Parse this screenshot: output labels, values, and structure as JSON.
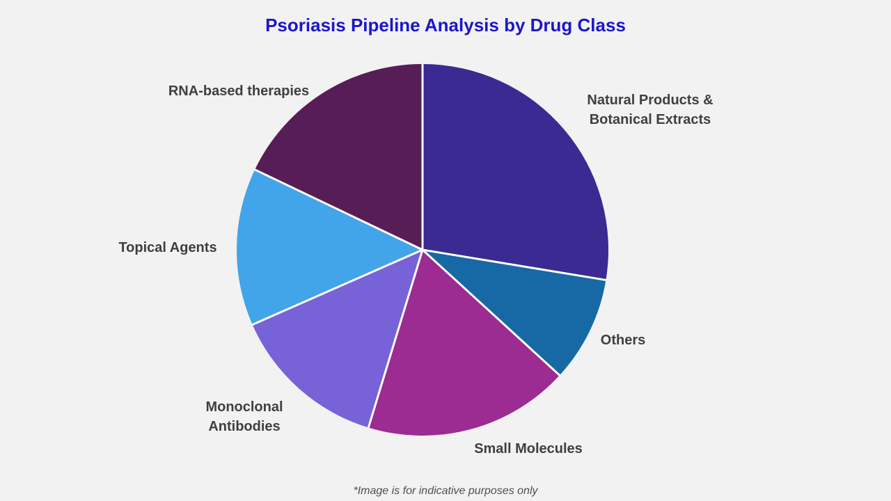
{
  "title": "Psoriasis Pipeline Analysis by Drug Class",
  "footer_note": "*Image is for indicative purposes only",
  "colors": {
    "background": "#f2f2f2",
    "title": "#1c15cb",
    "label": "#3f3f3f",
    "separator": "#ffffff"
  },
  "labels": {
    "natural": "Natural Products &\nBotanical Extracts",
    "others": "Others",
    "small": "Small Molecules",
    "monoclonal": "Monoclonal\nAntibodies",
    "topical": "Topical Agents",
    "rna": "RNA-based therapies"
  },
  "chart_data": {
    "type": "pie",
    "title": "Psoriasis Pipeline Analysis by Drug Class",
    "categories": [
      "Natural Products & Botanical Extracts",
      "Others",
      "Small Molecules",
      "Monoclonal Antibodies",
      "Topical Agents",
      "RNA-based therapies"
    ],
    "values": [
      27.6,
      9.2,
      17.9,
      13.7,
      13.7,
      17.9
    ],
    "unit": "percent-of-whole",
    "slice_colors": [
      "#3a2a92",
      "#1769a5",
      "#9c2b92",
      "#7762d8",
      "#42a4e9",
      "#571d56"
    ],
    "start_angle_deg": 0,
    "direction": "clockwise",
    "legend": "none",
    "labels_position": "outside",
    "annotation": "*Image is for indicative purposes only"
  }
}
